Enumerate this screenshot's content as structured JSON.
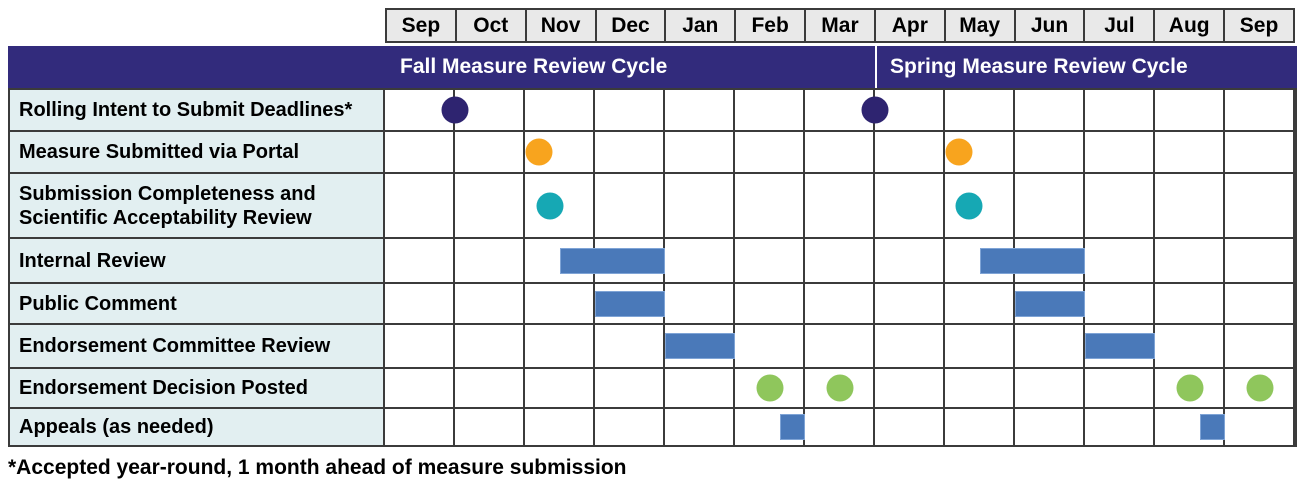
{
  "footnote": "*Accepted year-round, 1 month ahead of measure submission",
  "colors": {
    "purple": "#2E2470",
    "orange": "#F8A41E",
    "teal": "#16A8B4",
    "green": "#8FC65C",
    "bar_blue": "#4A79B9",
    "banner_navy": "#322B7C",
    "header_gray": "#E9E9E9",
    "label_blue": "#E2EFF1",
    "grid_line": "#3B3B3B"
  },
  "chart_data": {
    "type": "table",
    "subtype": "gantt_timeline",
    "title": "",
    "x_unit": "month",
    "axis_note": "pos/start/end are months measured from the start of the first September column (0 = Sep 1); 13 columns Sep through following Sep",
    "months": [
      "Sep",
      "Oct",
      "Nov",
      "Dec",
      "Jan",
      "Feb",
      "Mar",
      "Apr",
      "May",
      "Jun",
      "Jul",
      "Aug",
      "Sep"
    ],
    "cycles": [
      {
        "label": "Fall Measure Review Cycle",
        "start_month_index": 0,
        "end_month_index": 7
      },
      {
        "label": "Spring Measure Review Cycle",
        "start_month_index": 7,
        "end_month_index": 13
      }
    ],
    "rows": [
      {
        "label": "Rolling Intent to Submit Deadlines*",
        "markers": [
          {
            "type": "dot",
            "color": "purple",
            "pos": 1.0
          },
          {
            "type": "dot",
            "color": "purple",
            "pos": 7.0
          }
        ]
      },
      {
        "label": "Measure Submitted via Portal",
        "markers": [
          {
            "type": "dot",
            "color": "orange",
            "pos": 2.2
          },
          {
            "type": "dot",
            "color": "orange",
            "pos": 8.2
          }
        ]
      },
      {
        "label": "Submission Completeness and\nScientific Acceptability Review",
        "markers": [
          {
            "type": "dot",
            "color": "teal",
            "pos": 2.35
          },
          {
            "type": "dot",
            "color": "teal",
            "pos": 8.35
          }
        ]
      },
      {
        "label": "Internal Review",
        "markers": [
          {
            "type": "bar",
            "color": "bar_blue",
            "start": 2.5,
            "end": 4.0
          },
          {
            "type": "bar",
            "color": "bar_blue",
            "start": 8.5,
            "end": 10.0
          }
        ]
      },
      {
        "label": "Public Comment",
        "markers": [
          {
            "type": "bar",
            "color": "bar_blue",
            "start": 3.0,
            "end": 4.0
          },
          {
            "type": "bar",
            "color": "bar_blue",
            "start": 9.0,
            "end": 10.0
          }
        ]
      },
      {
        "label": "Endorsement Committee Review",
        "markers": [
          {
            "type": "bar",
            "color": "bar_blue",
            "start": 4.0,
            "end": 5.0
          },
          {
            "type": "bar",
            "color": "bar_blue",
            "start": 10.0,
            "end": 11.0
          }
        ]
      },
      {
        "label": "Endorsement Decision Posted",
        "markers": [
          {
            "type": "dot",
            "color": "green",
            "pos": 5.5
          },
          {
            "type": "dot",
            "color": "green",
            "pos": 6.5
          },
          {
            "type": "dot",
            "color": "green",
            "pos": 11.5
          },
          {
            "type": "dot",
            "color": "green",
            "pos": 12.5
          }
        ]
      },
      {
        "label": "Appeals (as needed)",
        "markers": [
          {
            "type": "square",
            "color": "bar_blue",
            "end": 6.0
          },
          {
            "type": "square",
            "color": "bar_blue",
            "end": 12.0
          }
        ]
      }
    ]
  }
}
